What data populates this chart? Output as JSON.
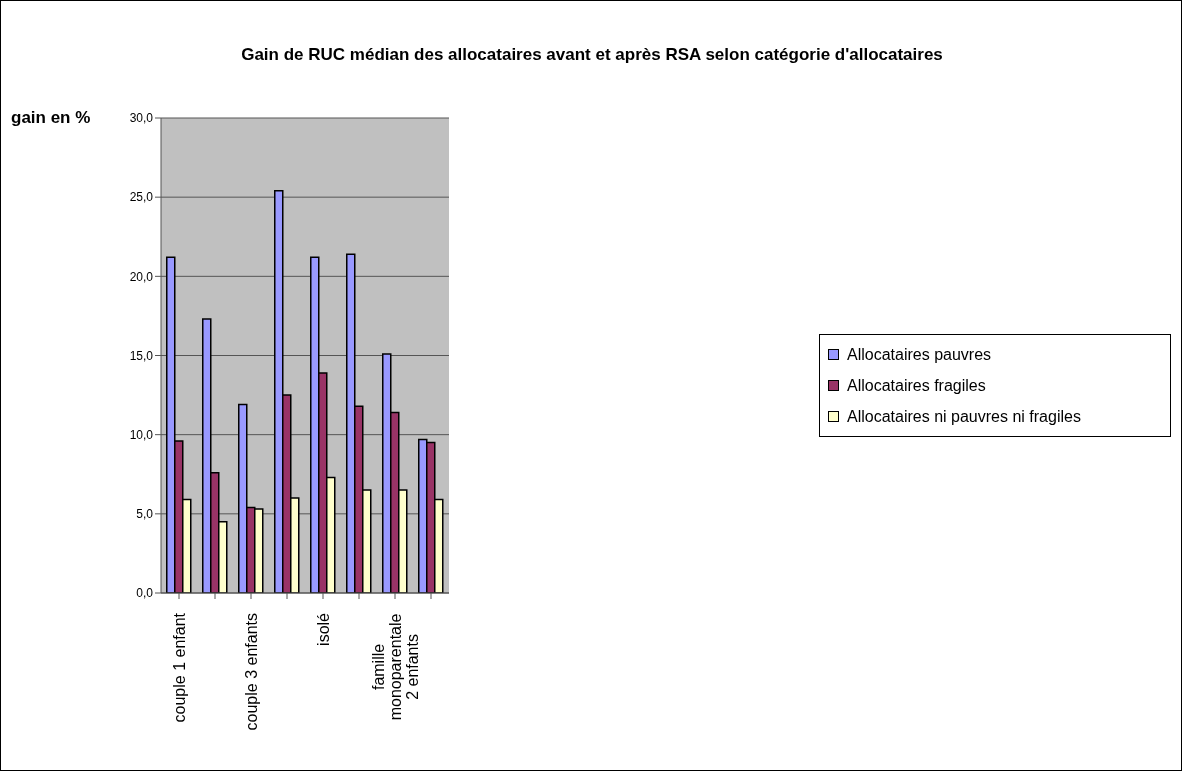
{
  "chart_data": {
    "type": "bar",
    "title": "Gain de RUC médian des allocataires avant et après RSA selon catégorie d'allocataires",
    "ylabel": "gain en %",
    "categories": [
      "couple 1 enfant",
      null,
      "couple 3 enfants",
      null,
      "isolé",
      null,
      "famille\nmonoparentale\n2 enfants",
      null
    ],
    "series": [
      {
        "name": "Allocataires pauvres",
        "color": "#9999ff",
        "values": [
          21.2,
          17.3,
          11.9,
          25.4,
          21.2,
          21.4,
          15.1,
          9.7
        ]
      },
      {
        "name": "Allocataires fragiles",
        "color": "#993366",
        "values": [
          9.6,
          7.6,
          5.4,
          12.5,
          13.9,
          11.8,
          11.4,
          9.5
        ]
      },
      {
        "name": "Allocataires ni pauvres ni fragiles",
        "color": "#ffffcc",
        "values": [
          5.9,
          4.5,
          5.3,
          6.0,
          7.3,
          6.5,
          6.5,
          5.9
        ]
      }
    ],
    "ylim": [
      0,
      30
    ],
    "yticks": [
      {
        "value": 0,
        "label": "0,0"
      },
      {
        "value": 5,
        "label": "5,0"
      },
      {
        "value": 10,
        "label": "10,0"
      },
      {
        "value": 15,
        "label": "15,0"
      },
      {
        "value": 20,
        "label": "20,0"
      },
      {
        "value": 25,
        "label": "25,0"
      },
      {
        "value": 30,
        "label": "30,0"
      }
    ],
    "grid": "y",
    "legend": "right"
  }
}
